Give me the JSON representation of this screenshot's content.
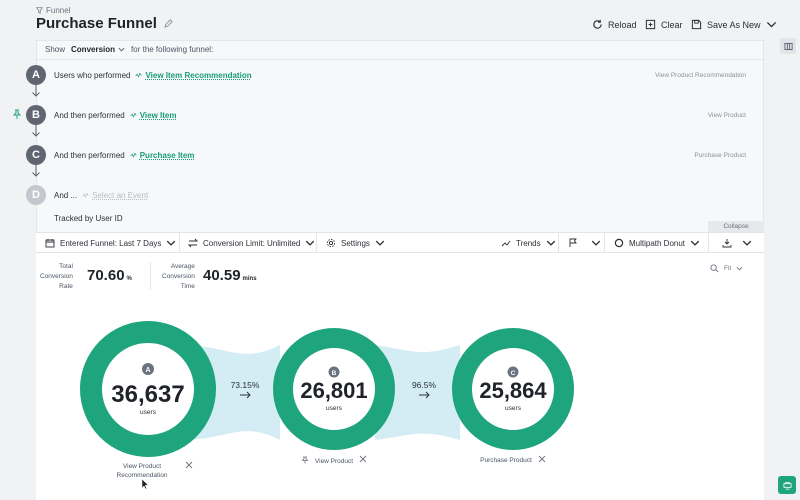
{
  "header": {
    "breadcrumb": "Funnel",
    "title": "Purchase Funnel",
    "reload_label": "Reload",
    "clear_label": "Clear",
    "save_label": "Save As New"
  },
  "show_row": {
    "show_label": "Show",
    "metric": "Conversion",
    "suffix": "for the following funnel:"
  },
  "steps": [
    {
      "letter": "A",
      "prefix": "Users who performed",
      "event": "View Item Recommendation",
      "right": "View Product Recommendation"
    },
    {
      "letter": "B",
      "prefix": "And then performed",
      "event": "View Item",
      "right": "View Product"
    },
    {
      "letter": "C",
      "prefix": "And then performed",
      "event": "Purchase Item",
      "right": "Purchase Product"
    },
    {
      "letter": "D",
      "prefix": "And ...",
      "event": "Select an Event",
      "right": ""
    }
  ],
  "tracked": "Tracked by User ID",
  "collapse_label": "Collapse",
  "toolbar": {
    "entered_funnel": "Entered Funnel: Last 7 Days",
    "conversion_limit": "Conversion Limit: Unlimited",
    "settings": "Settings",
    "trends": "Trends",
    "chart_type": "Multipath Donut"
  },
  "stats": {
    "total_label_1": "Total",
    "total_label_2": "Conversion",
    "total_label_3": "Rate",
    "total_value": "70.60",
    "total_unit": "%",
    "avg_label_1": "Average",
    "avg_label_2": "Conversion",
    "avg_label_3": "Time",
    "avg_value": "40.59",
    "avg_unit": "mins"
  },
  "fit_label": "Fit",
  "funnel": {
    "nodes": [
      {
        "letter": "A",
        "value": "36,637",
        "unit": "users",
        "label_1": "View Product",
        "label_2": "Recommendation"
      },
      {
        "letter": "B",
        "value": "26,801",
        "unit": "users",
        "label_1": "View Product",
        "label_2": ""
      },
      {
        "letter": "C",
        "value": "25,864",
        "unit": "users",
        "label_1": "Purchase Product",
        "label_2": ""
      }
    ],
    "rates": [
      "73.15%",
      "96.5%"
    ]
  },
  "colors": {
    "accent": "#1fa57e",
    "link": "#179c77",
    "flow": "#d4edf4",
    "badge": "#5f6672"
  }
}
